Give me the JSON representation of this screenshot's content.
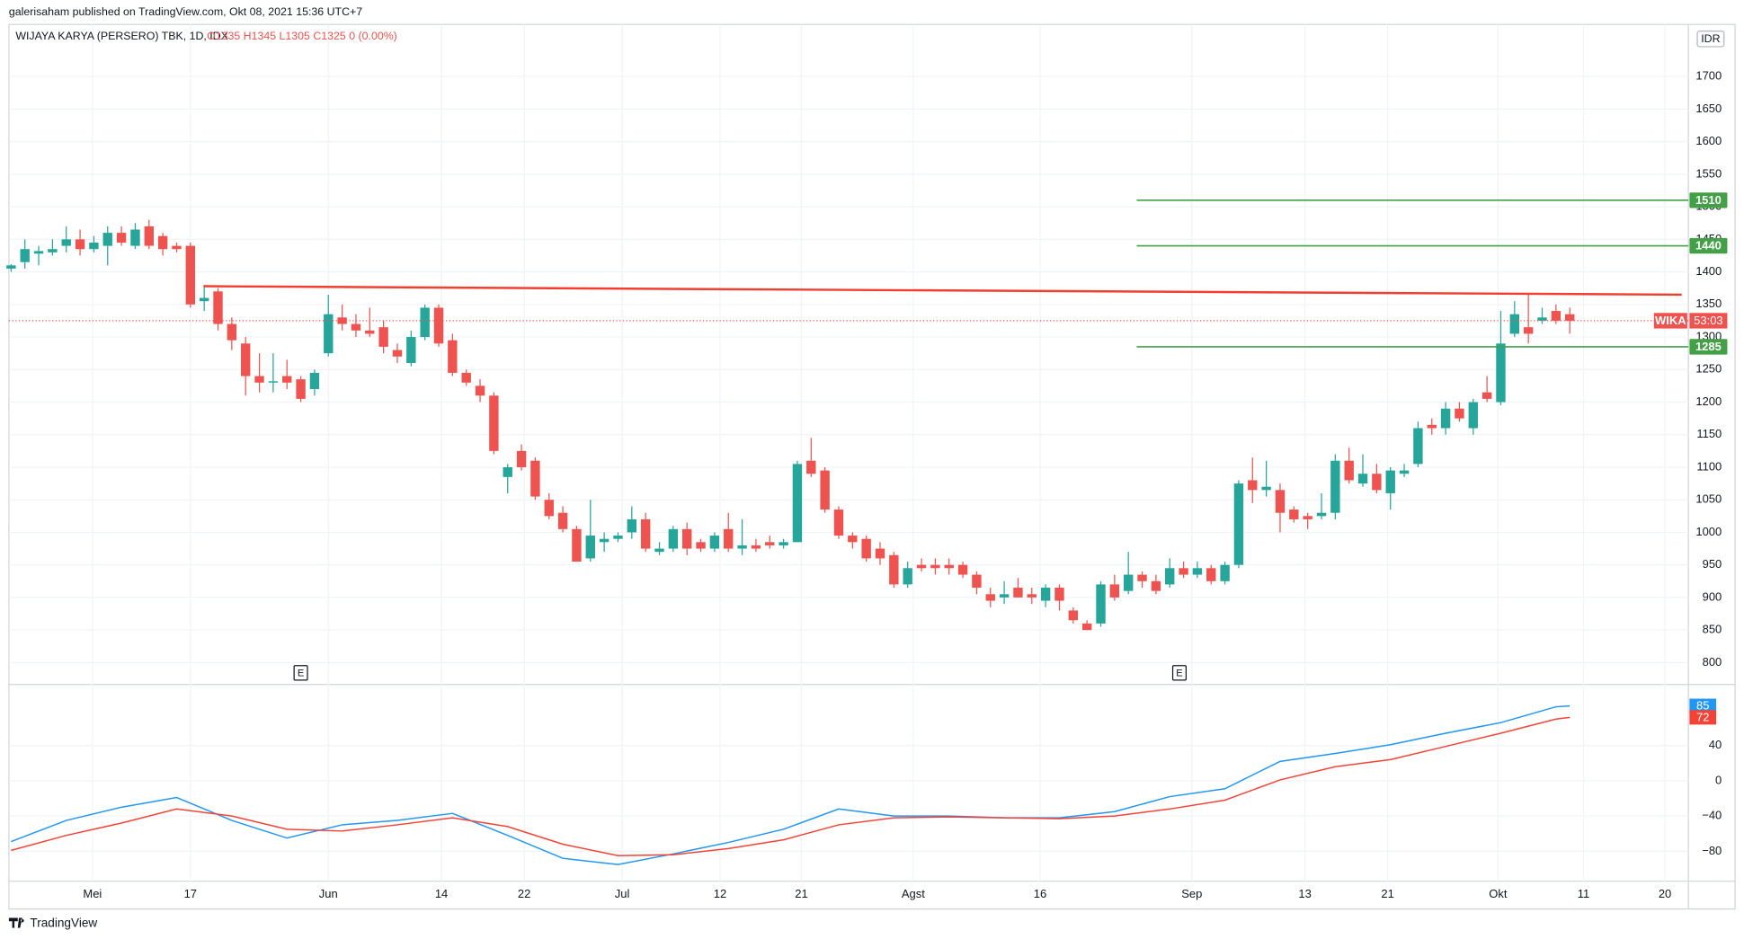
{
  "header": {
    "published": "galerisaham published on TradingView.com, Okt 08, 2021 15:36 UTC+7",
    "symbol": "WIJAYA KARYA (PERSERO) TBK, 1D, IDX",
    "ohlc_text": "O1335  H1345  L1305  C1325  0 (0.00%)",
    "currency": "IDR",
    "footer": "TradingView"
  },
  "chart_data": {
    "type": "candlestick",
    "up_color": "#26a69a",
    "down_color": "#ef5350",
    "open": [
      1405,
      1415,
      1428,
      1430,
      1440,
      1450,
      1435,
      1440,
      1460,
      1440,
      1470,
      1455,
      1440,
      1440,
      1355,
      1370,
      1320,
      1290,
      1240,
      1230,
      1240,
      1235,
      1220,
      1275,
      1330,
      1320,
      1310,
      1315,
      1280,
      1260,
      1300,
      1345,
      1295,
      1245,
      1225,
      1210,
      1085,
      1125,
      1110,
      1050,
      1030,
      1005,
      960,
      985,
      990,
      1000,
      1020,
      970,
      975,
      1005,
      985,
      975,
      1005,
      975,
      980,
      985,
      980,
      985,
      1110,
      1095,
      1035,
      995,
      990,
      975,
      965,
      920,
      950,
      950,
      950,
      950,
      935,
      905,
      900,
      915,
      905,
      895,
      915,
      880,
      860,
      860,
      920,
      910,
      935,
      925,
      920,
      945,
      935,
      945,
      925,
      950,
      1080,
      1065,
      1065,
      1035,
      1025,
      1025,
      1030,
      1110,
      1075,
      1090,
      1060,
      1090,
      1105,
      1165,
      1160,
      1190,
      1160,
      1215,
      1200,
      1305,
      1315,
      1325,
      1340,
      1335
    ],
    "high": [
      1412,
      1450,
      1440,
      1450,
      1470,
      1465,
      1455,
      1470,
      1470,
      1475,
      1480,
      1460,
      1445,
      1445,
      1380,
      1375,
      1330,
      1300,
      1275,
      1275,
      1265,
      1240,
      1250,
      1365,
      1350,
      1335,
      1345,
      1325,
      1290,
      1310,
      1350,
      1350,
      1305,
      1250,
      1235,
      1215,
      1105,
      1135,
      1115,
      1060,
      1040,
      1010,
      1050,
      1000,
      1000,
      1040,
      1030,
      985,
      1010,
      1015,
      990,
      1000,
      1030,
      1020,
      990,
      995,
      990,
      1110,
      1145,
      1100,
      1040,
      1000,
      995,
      985,
      970,
      955,
      960,
      960,
      960,
      955,
      940,
      915,
      925,
      930,
      915,
      920,
      920,
      885,
      865,
      925,
      935,
      970,
      940,
      935,
      960,
      955,
      955,
      950,
      955,
      1080,
      1115,
      1110,
      1075,
      1040,
      1030,
      1060,
      1120,
      1130,
      1120,
      1105,
      1100,
      1105,
      1170,
      1175,
      1200,
      1200,
      1205,
      1240,
      1340,
      1355,
      1365,
      1345,
      1350,
      1345
    ],
    "low": [
      1400,
      1405,
      1410,
      1425,
      1430,
      1425,
      1430,
      1410,
      1440,
      1435,
      1435,
      1425,
      1430,
      1345,
      1340,
      1310,
      1280,
      1210,
      1215,
      1215,
      1220,
      1200,
      1210,
      1270,
      1310,
      1300,
      1300,
      1275,
      1260,
      1255,
      1295,
      1285,
      1240,
      1225,
      1200,
      1120,
      1060,
      1095,
      1050,
      1020,
      1000,
      955,
      955,
      970,
      985,
      990,
      970,
      965,
      970,
      965,
      970,
      970,
      970,
      965,
      970,
      975,
      975,
      985,
      1085,
      1030,
      990,
      975,
      955,
      950,
      915,
      915,
      940,
      935,
      935,
      930,
      905,
      885,
      890,
      900,
      890,
      885,
      880,
      860,
      850,
      855,
      895,
      905,
      915,
      905,
      915,
      930,
      930,
      920,
      920,
      945,
      1045,
      1055,
      1000,
      1015,
      1005,
      1020,
      1020,
      1075,
      1070,
      1060,
      1035,
      1085,
      1100,
      1150,
      1150,
      1170,
      1150,
      1200,
      1195,
      1300,
      1290,
      1320,
      1320,
      1305
    ],
    "close": [
      1410,
      1435,
      1432,
      1435,
      1450,
      1435,
      1445,
      1460,
      1445,
      1465,
      1440,
      1435,
      1435,
      1350,
      1360,
      1320,
      1295,
      1240,
      1230,
      1232,
      1230,
      1205,
      1245,
      1335,
      1320,
      1310,
      1305,
      1285,
      1270,
      1300,
      1345,
      1290,
      1245,
      1230,
      1210,
      1125,
      1100,
      1100,
      1055,
      1025,
      1005,
      955,
      995,
      990,
      995,
      1020,
      975,
      975,
      1005,
      975,
      975,
      995,
      975,
      980,
      975,
      980,
      985,
      1105,
      1090,
      1035,
      995,
      985,
      960,
      960,
      920,
      945,
      945,
      945,
      945,
      935,
      915,
      895,
      905,
      900,
      900,
      915,
      895,
      865,
      850,
      920,
      900,
      935,
      925,
      910,
      945,
      935,
      945,
      925,
      950,
      1075,
      1065,
      1070,
      1030,
      1020,
      1020,
      1030,
      1110,
      1080,
      1090,
      1065,
      1095,
      1095,
      1160,
      1160,
      1190,
      1175,
      1200,
      1205,
      1290,
      1335,
      1305,
      1330,
      1325,
      1325
    ],
    "last_price": 1325,
    "last_symbol": "WIKA",
    "countdown": "53:03",
    "ylim": [
      768,
      1780
    ],
    "yticks": [
      800,
      850,
      900,
      950,
      1000,
      1050,
      1100,
      1150,
      1200,
      1250,
      1300,
      1350,
      1400,
      1450,
      1500,
      1550,
      1600,
      1650,
      1700
    ],
    "xlim": [
      -0.16,
      121.6
    ],
    "xticks": [
      {
        "value": 5.9,
        "label": "Mei"
      },
      {
        "value": 13,
        "label": "17"
      },
      {
        "value": 23,
        "label": "Jun"
      },
      {
        "value": 31.2,
        "label": "14"
      },
      {
        "value": 37.2,
        "label": "22"
      },
      {
        "value": 44.3,
        "label": "Jul"
      },
      {
        "value": 51.4,
        "label": "12"
      },
      {
        "value": 57.3,
        "label": "21"
      },
      {
        "value": 65.4,
        "label": "Agst"
      },
      {
        "value": 74.6,
        "label": "16"
      },
      {
        "value": 85.6,
        "label": "Sep"
      },
      {
        "value": 93.8,
        "label": "13"
      },
      {
        "value": 99.8,
        "label": "21"
      },
      {
        "value": 107.8,
        "label": "Okt"
      },
      {
        "value": 114,
        "label": "11"
      },
      {
        "value": 119.9,
        "label": "20"
      }
    ],
    "levels": [
      {
        "value": 1510,
        "color": "#43a047"
      },
      {
        "value": 1440,
        "color": "#43a047"
      },
      {
        "value": 1285,
        "color": "#43a047"
      }
    ],
    "trendline": {
      "values": [
        1378,
        1365
      ],
      "color": "#f23d2f"
    },
    "events": [
      {
        "x": 21,
        "label": "E"
      },
      {
        "x": 84.7,
        "label": "E"
      }
    ],
    "grid": true,
    "indicator": {
      "type": "line",
      "ylim": [
        -114,
        108
      ],
      "yticks": [
        {
          "value": -80,
          "label": "−80"
        },
        {
          "value": -40,
          "label": "−40"
        },
        0,
        40
      ],
      "series": [
        {
          "name": "fast",
          "color": "#2196f3",
          "x": [
            0,
            4,
            8,
            12,
            16,
            20,
            24,
            28,
            32,
            36,
            40,
            44,
            48,
            52,
            56,
            60,
            64,
            68,
            72,
            76,
            80,
            84,
            88,
            92,
            96,
            100,
            104,
            108,
            112,
            113
          ],
          "values": [
            -69,
            -45,
            -30,
            -19,
            -45,
            -65,
            -50,
            -45,
            -37,
            -62,
            -88,
            -95,
            -83,
            -70,
            -55,
            -32,
            -40,
            -40,
            -42,
            -42,
            -35,
            -18,
            -9,
            22,
            31,
            41,
            54,
            66,
            84,
            85
          ]
        },
        {
          "name": "slow",
          "color": "#f44336",
          "x": [
            0,
            4,
            8,
            12,
            16,
            20,
            24,
            28,
            32,
            36,
            40,
            44,
            48,
            52,
            56,
            60,
            64,
            68,
            72,
            76,
            80,
            84,
            88,
            92,
            96,
            100,
            104,
            108,
            112,
            113
          ],
          "values": [
            -79,
            -62,
            -48,
            -32,
            -40,
            -55,
            -57,
            -50,
            -42,
            -52,
            -72,
            -85,
            -84,
            -77,
            -67,
            -50,
            -42,
            -41,
            -42,
            -43,
            -40,
            -32,
            -22,
            1,
            16,
            24,
            39,
            54,
            70,
            72
          ]
        }
      ]
    }
  }
}
